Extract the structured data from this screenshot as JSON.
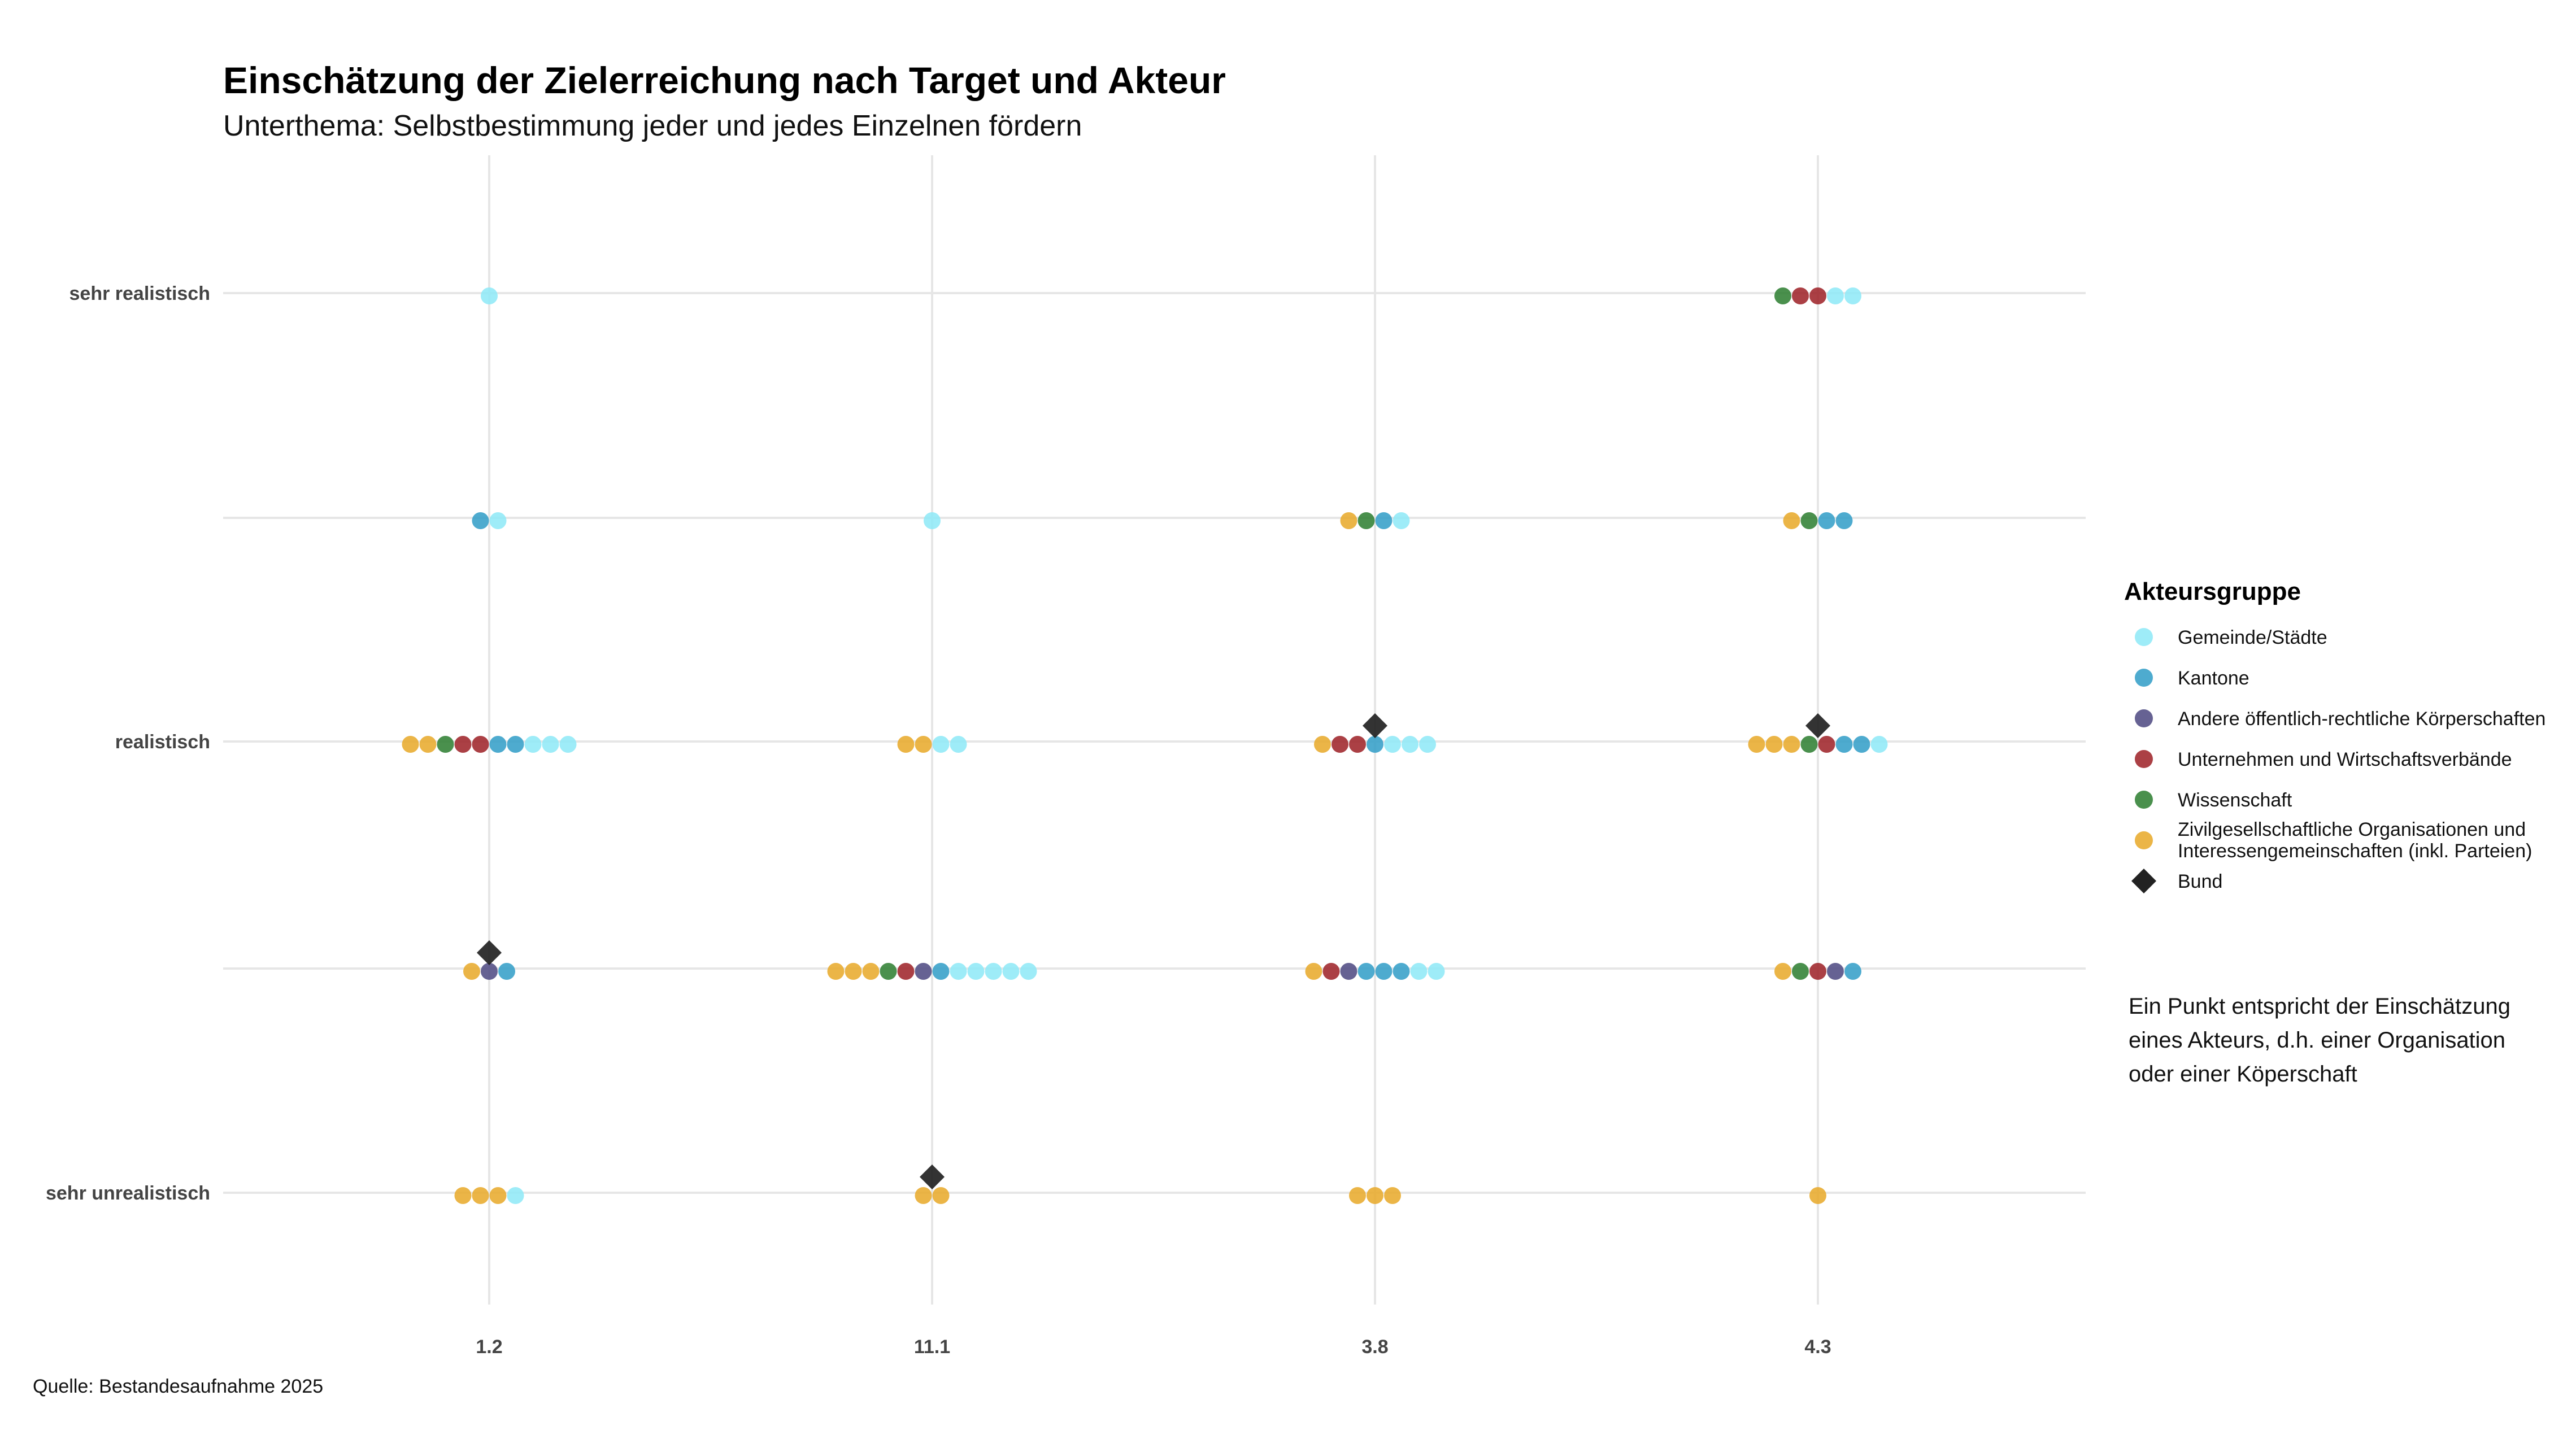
{
  "chart_data": {
    "type": "scatter",
    "title": "Einschätzung der Zielerreichung nach Target und Akteur",
    "subtitle": "Unterthema: Selbstbestimmung jeder und jedes Einzelnen fördern",
    "caption": "Quelle: Bestandesaufnahme 2025",
    "x_categories": [
      "1.2",
      "11.1",
      "3.8",
      "4.3"
    ],
    "y_levels": [
      "sehr unrealistisch",
      "",
      "realistisch",
      "",
      "sehr realistisch"
    ],
    "y_tick_labels": [
      "sehr unrealistisch",
      "realistisch",
      "sehr realistisch"
    ],
    "grid": true,
    "legend": {
      "title": "Akteursgruppe",
      "placement": "right",
      "entries": [
        {
          "key": "gemeinde",
          "label": "Gemeinde/Städte",
          "color": "#8de9f7",
          "shape": "circle"
        },
        {
          "key": "kantone",
          "label": "Kantone",
          "color": "#2f9cc7",
          "shape": "circle"
        },
        {
          "key": "andere",
          "label": "Andere öffentlich-rechtliche Körperschaften",
          "color": "#4b4680",
          "shape": "circle"
        },
        {
          "key": "unternehmen",
          "label": "Unternehmen und Wirtschaftsverbände",
          "color": "#9c1f24",
          "shape": "circle"
        },
        {
          "key": "wissenschaft",
          "label": "Wissenschaft",
          "color": "#2a7d2e",
          "shape": "circle"
        },
        {
          "key": "zivil",
          "label": "Zivilgesellschaftliche Organisationen und",
          "label2": "Interessengemeinschaften (inkl. Parteien)",
          "color": "#e8a827",
          "shape": "circle"
        },
        {
          "key": "bund",
          "label": "Bund",
          "color": "#222222",
          "shape": "diamond"
        }
      ]
    },
    "note": [
      "Ein Punkt entspricht der Einschätzung",
      "eines Akteurs, d.h. einer Organisation",
      "oder einer Köperschaft"
    ],
    "points": [
      {
        "x": "1.2",
        "y": 5,
        "groups": [
          "gemeinde"
        ]
      },
      {
        "x": "1.2",
        "y": 4,
        "groups": [
          "kantone",
          "gemeinde"
        ]
      },
      {
        "x": "1.2",
        "y": 3,
        "groups": [
          "zivil",
          "zivil",
          "wissenschaft",
          "unternehmen",
          "unternehmen",
          "kantone",
          "kantone",
          "gemeinde",
          "gemeinde",
          "gemeinde"
        ]
      },
      {
        "x": "1.2",
        "y": 2,
        "groups": [
          "zivil",
          "andere",
          "kantone"
        ],
        "bund": true
      },
      {
        "x": "1.2",
        "y": 1,
        "groups": [
          "zivil",
          "zivil",
          "zivil",
          "gemeinde"
        ]
      },
      {
        "x": "11.1",
        "y": 4,
        "groups": [
          "gemeinde"
        ]
      },
      {
        "x": "11.1",
        "y": 3,
        "groups": [
          "zivil",
          "zivil",
          "gemeinde",
          "gemeinde"
        ]
      },
      {
        "x": "11.1",
        "y": 2,
        "groups": [
          "zivil",
          "zivil",
          "zivil",
          "wissenschaft",
          "unternehmen",
          "andere",
          "kantone",
          "gemeinde",
          "gemeinde",
          "gemeinde",
          "gemeinde",
          "gemeinde"
        ]
      },
      {
        "x": "11.1",
        "y": 1,
        "groups": [
          "zivil",
          "zivil"
        ],
        "bund": true
      },
      {
        "x": "3.8",
        "y": 4,
        "groups": [
          "zivil",
          "wissenschaft",
          "kantone",
          "gemeinde"
        ]
      },
      {
        "x": "3.8",
        "y": 3,
        "groups": [
          "zivil",
          "unternehmen",
          "unternehmen",
          "kantone",
          "gemeinde",
          "gemeinde",
          "gemeinde"
        ],
        "bund": true
      },
      {
        "x": "3.8",
        "y": 2,
        "groups": [
          "zivil",
          "unternehmen",
          "andere",
          "kantone",
          "kantone",
          "kantone",
          "gemeinde",
          "gemeinde"
        ]
      },
      {
        "x": "3.8",
        "y": 1,
        "groups": [
          "zivil",
          "zivil",
          "zivil"
        ]
      },
      {
        "x": "4.3",
        "y": 5,
        "groups": [
          "wissenschaft",
          "unternehmen",
          "unternehmen",
          "gemeinde",
          "gemeinde"
        ]
      },
      {
        "x": "4.3",
        "y": 4,
        "groups": [
          "zivil",
          "wissenschaft",
          "kantone",
          "kantone"
        ]
      },
      {
        "x": "4.3",
        "y": 3,
        "groups": [
          "zivil",
          "zivil",
          "zivil",
          "wissenschaft",
          "unternehmen",
          "kantone",
          "kantone",
          "gemeinde"
        ],
        "bund": true
      },
      {
        "x": "4.3",
        "y": 2,
        "groups": [
          "zivil",
          "wissenschaft",
          "unternehmen",
          "andere",
          "kantone"
        ]
      },
      {
        "x": "4.3",
        "y": 1,
        "groups": [
          "zivil"
        ]
      }
    ]
  }
}
